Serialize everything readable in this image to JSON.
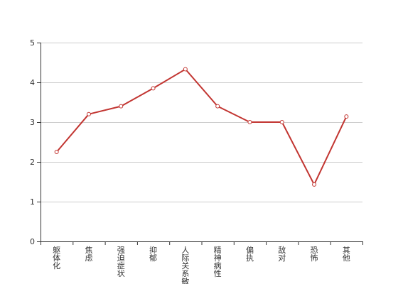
{
  "chart_data": {
    "type": "line",
    "categories": [
      "躯体化",
      "焦虑",
      "强迫症状",
      "抑郁",
      "人际关系敏感",
      "精神病性",
      "偏执",
      "敌对",
      "恐怖",
      "其他"
    ],
    "series": [
      {
        "values": [
          2.25,
          3.2,
          3.4,
          3.85,
          4.33,
          3.4,
          3.0,
          3.0,
          1.43,
          3.14
        ]
      }
    ],
    "y_ticks": [
      "0",
      "1",
      "2",
      "3",
      "4",
      "5"
    ],
    "ylim": [
      0,
      5
    ],
    "grid": "horizontal",
    "legend": "none",
    "colors": {
      "line": "#c23531",
      "grid": "#cccccc",
      "axis": "#333333"
    }
  }
}
